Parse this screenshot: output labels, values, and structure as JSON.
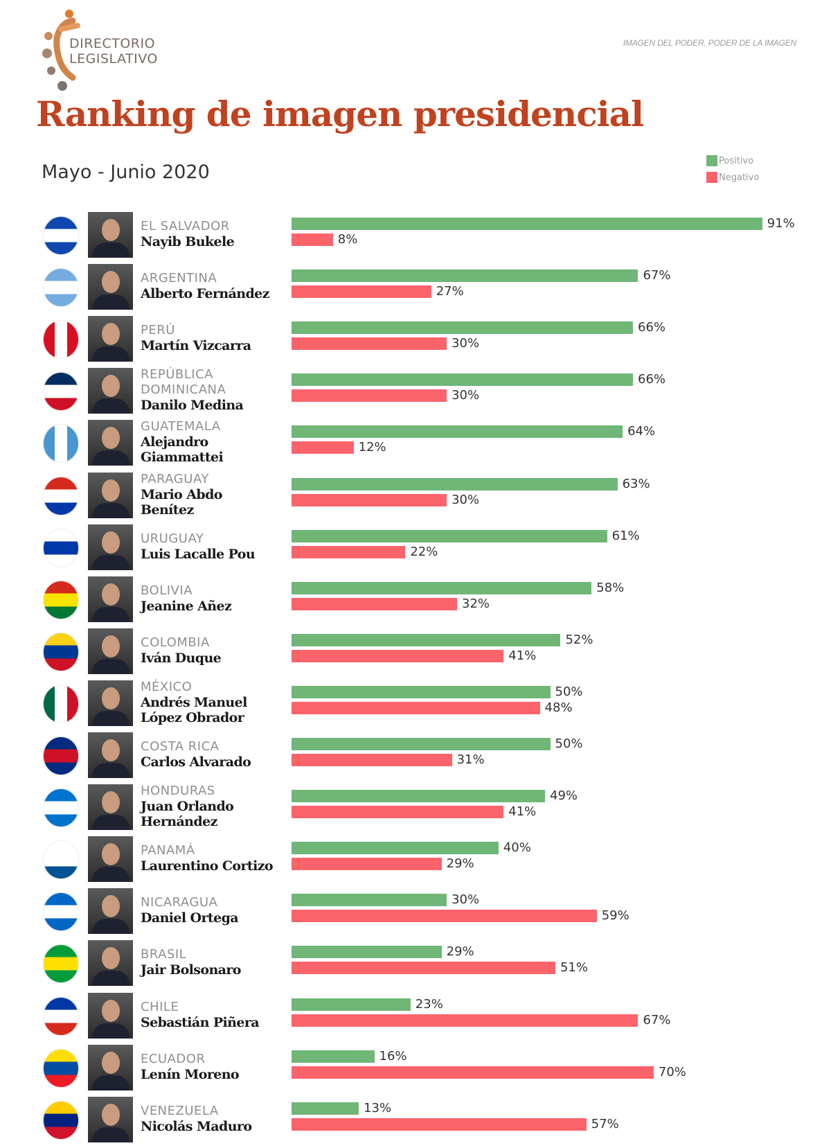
{
  "header": {
    "logo_text": [
      "DIRECTORIO",
      "LEGISLATIVO"
    ],
    "tagline": "IMAGEN DEL PODER. PODER DE LA IMAGEN"
  },
  "chart_data": {
    "type": "bar",
    "orientation": "horizontal",
    "title": "Ranking de imagen presidencial",
    "subtitle": "Mayo - Junio 2020",
    "legend": [
      {
        "name": "Positivo",
        "color": "#6fb677"
      },
      {
        "name": "Negativo",
        "color": "#fb636b"
      }
    ],
    "legend_position": "top-right",
    "unit": "%",
    "xlim": [
      0,
      100
    ],
    "categories": [
      {
        "country": "EL SALVADOR",
        "president": "Nayib Bukele",
        "flag": [
          "#0f47af",
          "#ffffff",
          "#0f47af"
        ]
      },
      {
        "country": "ARGENTINA",
        "president": "Alberto Fernández",
        "flag": [
          "#74acdf",
          "#ffffff",
          "#74acdf"
        ]
      },
      {
        "country": "PERÚ",
        "president": "Martín Vizcarra",
        "flag_vertical": [
          "#d91023",
          "#ffffff",
          "#d91023"
        ]
      },
      {
        "country": "REPÚBLICA DOMINICANA",
        "president": "Danilo Medina",
        "flag": [
          "#002d62",
          "#ffffff",
          "#ce1126"
        ]
      },
      {
        "country": "GUATEMALA",
        "president": "Alejandro Giammattei",
        "flag_vertical": [
          "#4997d0",
          "#ffffff",
          "#4997d0"
        ]
      },
      {
        "country": "PARAGUAY",
        "president": "Mario Abdo Benítez",
        "flag": [
          "#d52b1e",
          "#ffffff",
          "#0038a8"
        ]
      },
      {
        "country": "URUGUAY",
        "president": "Luis Lacalle Pou",
        "flag": [
          "#ffffff",
          "#0038a8",
          "#ffffff"
        ]
      },
      {
        "country": "BOLIVIA",
        "president": "Jeanine Añez",
        "flag": [
          "#d52b1e",
          "#f9e300",
          "#007934"
        ]
      },
      {
        "country": "COLOMBIA",
        "president": "Iván Duque",
        "flag": [
          "#fcd116",
          "#003893",
          "#ce1126"
        ]
      },
      {
        "country": "MÉXICO",
        "president": "Andrés Manuel López Obrador",
        "flag_vertical": [
          "#006847",
          "#ffffff",
          "#ce1126"
        ]
      },
      {
        "country": "COSTA RICA",
        "president": "Carlos Alvarado",
        "flag": [
          "#002b7f",
          "#ce1126",
          "#002b7f"
        ]
      },
      {
        "country": "HONDURAS",
        "president": "Juan Orlando Hernández",
        "flag": [
          "#0073cf",
          "#ffffff",
          "#0073cf"
        ]
      },
      {
        "country": "PANAMÁ",
        "president": "Laurentino Cortizo",
        "flag": [
          "#ffffff",
          "#ffffff",
          "#005293"
        ]
      },
      {
        "country": "NICARAGUA",
        "president": "Daniel Ortega",
        "flag": [
          "#0067c6",
          "#ffffff",
          "#0067c6"
        ]
      },
      {
        "country": "BRASIL",
        "president": "Jair Bolsonaro",
        "flag": [
          "#009c3b",
          "#ffdf00",
          "#009c3b"
        ]
      },
      {
        "country": "CHILE",
        "president": "Sebastián Piñera",
        "flag": [
          "#0039a6",
          "#ffffff",
          "#d52b1e"
        ]
      },
      {
        "country": "ECUADOR",
        "president": "Lenín Moreno",
        "flag": [
          "#ffdd00",
          "#034ea2",
          "#ed1c24"
        ]
      },
      {
        "country": "VENEZUELA",
        "president": "Nicolás Maduro",
        "flag": [
          "#ffcc00",
          "#00247d",
          "#cf142b"
        ]
      }
    ],
    "series": [
      {
        "name": "Positivo",
        "values": [
          91,
          67,
          66,
          66,
          64,
          63,
          61,
          58,
          52,
          50,
          50,
          49,
          40,
          30,
          29,
          23,
          16,
          13
        ],
        "labels": [
          "91%",
          "67%",
          "66%",
          "66%",
          "64%",
          "63%",
          "61%",
          "58%",
          "52%",
          "50%",
          "50%",
          "49%",
          "40%",
          "30%",
          "29%",
          "23%",
          "16%",
          "13%"
        ]
      },
      {
        "name": "Negativo",
        "values": [
          8,
          27,
          30,
          30,
          12,
          30,
          22,
          32,
          41,
          48,
          31,
          41,
          29,
          59,
          51,
          67,
          70,
          57
        ],
        "labels": [
          "8%",
          "27%",
          "30%",
          "30%",
          "12%",
          "30%",
          "22%",
          "32%",
          "41%",
          "48%",
          "31%",
          "41%",
          "29%",
          "59%",
          "51%",
          "67%",
          "70%",
          "57%"
        ]
      }
    ]
  }
}
